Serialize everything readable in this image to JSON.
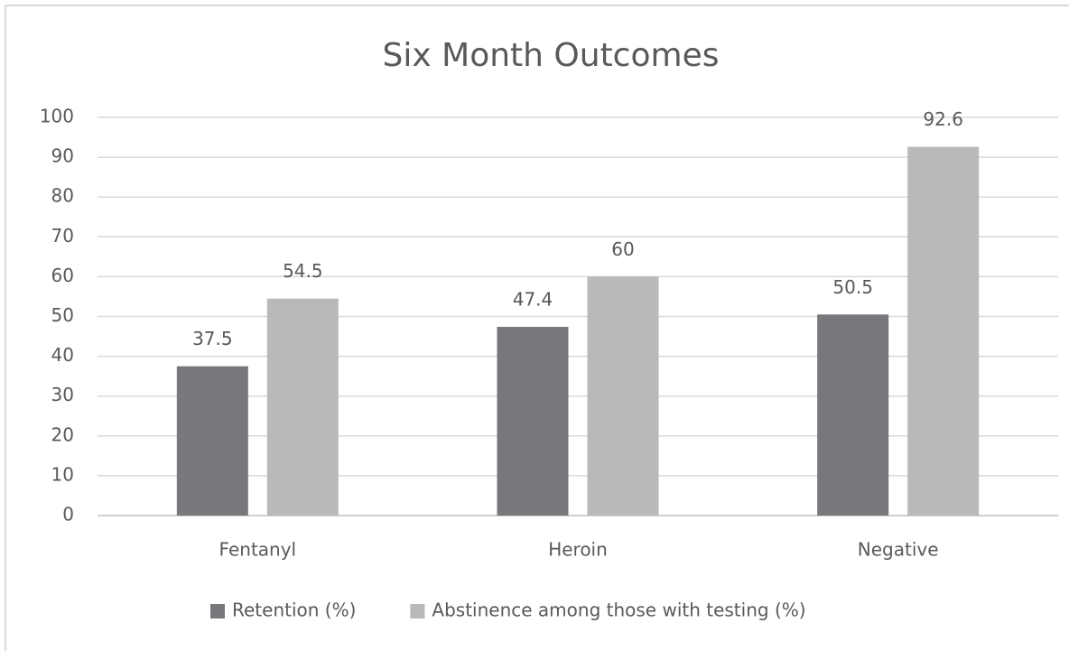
{
  "chart_data": {
    "type": "bar",
    "title": "Six Month Outcomes",
    "categories": [
      "Fentanyl",
      "Heroin",
      "Negative"
    ],
    "series": [
      {
        "name": "Retention (%)",
        "color": "#77787b",
        "values": [
          37.5,
          47.4,
          50.5
        ]
      },
      {
        "name": "Abstinence among those with testing (%)",
        "color": "#b8b9bb",
        "values": [
          54.5,
          60,
          92.6
        ]
      }
    ],
    "ylim": [
      0,
      100
    ],
    "yticks": [
      0,
      10,
      20,
      30,
      40,
      50,
      60,
      70,
      80,
      90,
      100
    ],
    "grid": true,
    "legend": "bottom"
  }
}
